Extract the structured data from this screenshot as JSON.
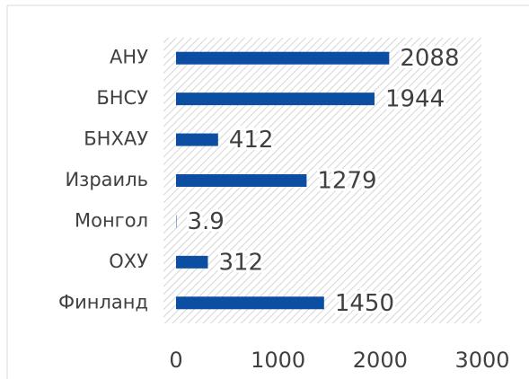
{
  "chart_data": {
    "type": "bar",
    "orientation": "horizontal",
    "categories": [
      "АНУ",
      "БНСУ",
      "БНХАУ",
      "Израиль",
      "Монгол",
      "ОХУ",
      "Финланд"
    ],
    "values": [
      2088,
      1944,
      412,
      1279,
      3.9,
      312,
      1450
    ],
    "color": "#0b4ea2",
    "xlim": [
      0,
      3000
    ],
    "xticks": [
      0,
      1000,
      2000,
      3000
    ]
  }
}
